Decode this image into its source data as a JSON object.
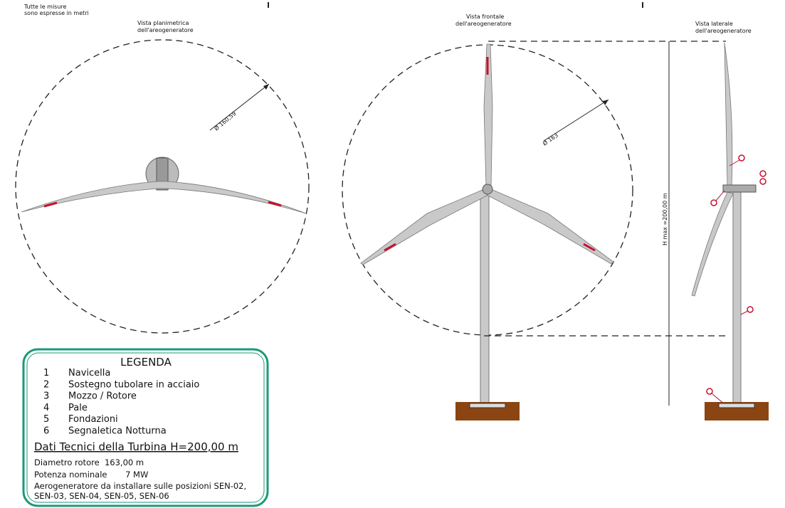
{
  "note": [
    "Tutte le misure",
    "sono espresse in metri"
  ],
  "views": [
    {
      "title": [
        "Vista planimetrica",
        "dell'areogeneratore"
      ],
      "dimension": "Ø 160,59"
    },
    {
      "title": [
        "Vista frontale",
        "dell'areogeneratore"
      ],
      "dimension": "Ø 163"
    },
    {
      "title": [
        "Vista laterale",
        "dell'areogeneratore"
      ]
    }
  ],
  "height_dimension": "H max =200,00 m",
  "legend": {
    "title": "LEGENDA",
    "items": [
      {
        "number": "1",
        "label": "Navicella"
      },
      {
        "number": "2",
        "label": "Sostegno tubolare in acciaio"
      },
      {
        "number": "3",
        "label": "Mozzo / Rotore"
      },
      {
        "number": "4",
        "label": "Pale"
      },
      {
        "number": "5",
        "label": "Fondazioni"
      },
      {
        "number": "6",
        "label": "Segnaletica Notturna"
      }
    ]
  },
  "technical_data": {
    "title": "Dati Tecnici della Turbina H=200,00 m",
    "lines": [
      "Diametro rotore  163,00 m",
      "Potenza nominale       7 MW",
      "Aerogeneratore da installare sulle posizioni SEN-02,",
      "SEN-03, SEN-04, SEN-05, SEN-06"
    ]
  }
}
